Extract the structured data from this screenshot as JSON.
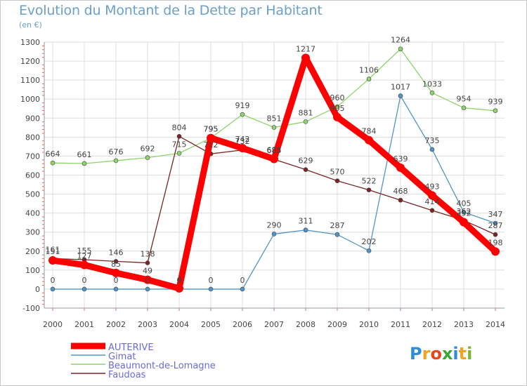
{
  "chart_data": {
    "type": "line",
    "title": "Evolution du Montant de la Dette par Habitant",
    "subtitle": "(en €)",
    "x": [
      "2000",
      "2001",
      "2002",
      "2003",
      "2004",
      "2005",
      "2006",
      "2007",
      "2008",
      "2009",
      "2010",
      "2011",
      "2012",
      "2013",
      "2014"
    ],
    "ylim": [
      -100,
      1300
    ],
    "yticks": [
      -100,
      0,
      100,
      200,
      300,
      400,
      500,
      600,
      700,
      800,
      900,
      1000,
      1100,
      1200,
      1300
    ],
    "grid": true,
    "legend_position": "bottom-left",
    "series": [
      {
        "name": "AUTERIVE",
        "color": "#ff0000",
        "values": [
          151,
          127,
          85,
          49,
          4,
          795,
          742,
          685,
          1217,
          905,
          784,
          639,
          493,
          352,
          198
        ],
        "labels": [
          "151",
          "127",
          "85",
          "49",
          "4",
          "795",
          "742",
          "685",
          "1217",
          "905",
          "784",
          "639",
          "493",
          "352",
          "198"
        ]
      },
      {
        "name": "Gimat",
        "color": "#4f95c8",
        "values": [
          0,
          0,
          0,
          0,
          0,
          0,
          0,
          290,
          311,
          287,
          202,
          1017,
          735,
          405,
          347
        ],
        "labels": [
          "0",
          "0",
          "0",
          "0",
          "0",
          "0",
          "0",
          "290",
          "311",
          "287",
          "202",
          "1017",
          "735",
          "405",
          "347"
        ]
      },
      {
        "name": "Beaumont-de-Lomagne",
        "color": "#8ed46a",
        "values": [
          664,
          661,
          676,
          692,
          715,
          795,
          919,
          851,
          881,
          960,
          1106,
          1264,
          1033,
          954,
          939
        ],
        "labels": [
          "664",
          "661",
          "676",
          "692",
          "715",
          "795",
          "919",
          "851",
          "881",
          "960",
          "1106",
          "1264",
          "1033",
          "954",
          "939"
        ]
      },
      {
        "name": "Faudoas",
        "color": "#7a2424",
        "values": [
          161,
          155,
          146,
          138,
          804,
          712,
          732,
          683,
          629,
          570,
          522,
          468,
          414,
          362,
          287
        ],
        "labels": [
          "161",
          "155",
          "146",
          "138",
          "804",
          "712",
          "732",
          "683",
          "629",
          "570",
          "522",
          "468",
          "414",
          "362",
          "287"
        ]
      }
    ]
  },
  "logo": {
    "text": "Proxiti",
    "letter_colors": [
      "#2f8dd6",
      "#f4a21c",
      "#e8461c",
      "#38a935",
      "#2f8dd6",
      "#f4a21c",
      "#7ab539"
    ]
  }
}
